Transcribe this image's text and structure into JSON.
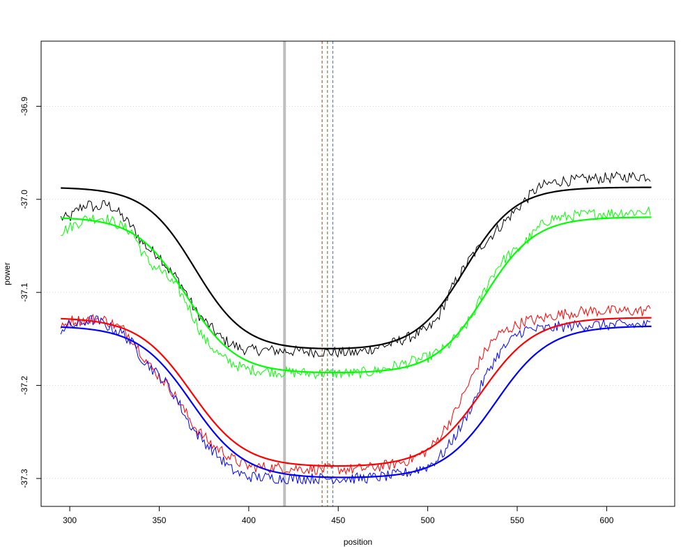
{
  "chart_data": {
    "type": "line",
    "title": "",
    "xlabel": "position",
    "ylabel": "power",
    "xlim": [
      284,
      638
    ],
    "ylim": [
      -37.33,
      -36.83
    ],
    "x_ticks": [
      300,
      350,
      400,
      450,
      500,
      550,
      600
    ],
    "y_ticks": [
      -37.3,
      -37.2,
      -37.1,
      -37.0,
      -36.9
    ],
    "y_tick_labels": [
      "-37.3",
      "-37.2",
      "-37.1",
      "-37.0",
      "-36.9"
    ],
    "grid": "horizontal dotted",
    "noisy_x_range": [
      295,
      625
    ],
    "series": [
      {
        "color": "#000000",
        "kind": "fit",
        "plateau": -36.987,
        "dip_min": -37.162,
        "fall_center": 370,
        "rise_center": 521,
        "width": 14,
        "noise": [
          [
            295,
            -37.02
          ],
          [
            300,
            -37.02
          ],
          [
            305,
            -37.01
          ],
          [
            310,
            -37.005
          ],
          [
            315,
            -37.01
          ],
          [
            320,
            -37.005
          ],
          [
            325,
            -37.01
          ],
          [
            330,
            -37.02
          ],
          [
            335,
            -37.03
          ],
          [
            340,
            -37.045
          ],
          [
            345,
            -37.055
          ],
          [
            350,
            -37.06
          ],
          [
            355,
            -37.075
          ],
          [
            360,
            -37.085
          ],
          [
            365,
            -37.1
          ],
          [
            370,
            -37.12
          ],
          [
            375,
            -37.13
          ],
          [
            380,
            -37.14
          ],
          [
            385,
            -37.15
          ],
          [
            390,
            -37.155
          ],
          [
            395,
            -37.16
          ],
          [
            400,
            -37.162
          ],
          [
            410,
            -37.162
          ],
          [
            420,
            -37.163
          ],
          [
            440,
            -37.164
          ],
          [
            460,
            -37.165
          ],
          [
            470,
            -37.16
          ],
          [
            480,
            -37.155
          ],
          [
            490,
            -37.148
          ],
          [
            500,
            -37.14
          ],
          [
            505,
            -37.13
          ],
          [
            510,
            -37.11
          ],
          [
            515,
            -37.09
          ],
          [
            520,
            -37.075
          ],
          [
            525,
            -37.06
          ],
          [
            530,
            -37.05
          ],
          [
            535,
            -37.04
          ],
          [
            540,
            -37.03
          ],
          [
            545,
            -37.02
          ],
          [
            550,
            -37.01
          ],
          [
            555,
            -37.0
          ],
          [
            560,
            -36.99
          ],
          [
            565,
            -36.985
          ],
          [
            570,
            -36.982
          ],
          [
            575,
            -36.98
          ],
          [
            580,
            -36.98
          ],
          [
            590,
            -36.978
          ],
          [
            600,
            -36.977
          ],
          [
            610,
            -36.976
          ],
          [
            620,
            -36.975
          ],
          [
            625,
            -36.976
          ]
        ]
      },
      {
        "color": "#00ff00",
        "kind": "fit",
        "plateau": -37.019,
        "dip_min": -37.187,
        "fall_center": 365,
        "rise_center": 532,
        "width": 14,
        "noise": [
          [
            295,
            -37.035
          ],
          [
            300,
            -37.03
          ],
          [
            305,
            -37.025
          ],
          [
            310,
            -37.02
          ],
          [
            315,
            -37.02
          ],
          [
            320,
            -37.02
          ],
          [
            325,
            -37.025
          ],
          [
            330,
            -37.03
          ],
          [
            335,
            -37.035
          ],
          [
            340,
            -37.055
          ],
          [
            345,
            -37.07
          ],
          [
            350,
            -37.075
          ],
          [
            355,
            -37.085
          ],
          [
            360,
            -37.095
          ],
          [
            365,
            -37.11
          ],
          [
            370,
            -37.13
          ],
          [
            375,
            -37.15
          ],
          [
            380,
            -37.16
          ],
          [
            385,
            -37.17
          ],
          [
            390,
            -37.175
          ],
          [
            395,
            -37.18
          ],
          [
            400,
            -37.183
          ],
          [
            420,
            -37.186
          ],
          [
            440,
            -37.187
          ],
          [
            460,
            -37.187
          ],
          [
            470,
            -37.185
          ],
          [
            480,
            -37.18
          ],
          [
            490,
            -37.175
          ],
          [
            500,
            -37.17
          ],
          [
            505,
            -37.165
          ],
          [
            510,
            -37.16
          ],
          [
            515,
            -37.15
          ],
          [
            520,
            -37.14
          ],
          [
            525,
            -37.125
          ],
          [
            530,
            -37.105
          ],
          [
            535,
            -37.085
          ],
          [
            540,
            -37.07
          ],
          [
            545,
            -37.06
          ],
          [
            550,
            -37.055
          ],
          [
            555,
            -37.045
          ],
          [
            560,
            -37.035
          ],
          [
            565,
            -37.025
          ],
          [
            570,
            -37.02
          ],
          [
            575,
            -37.02
          ],
          [
            580,
            -37.018
          ],
          [
            590,
            -37.016
          ],
          [
            600,
            -37.015
          ],
          [
            610,
            -37.014
          ],
          [
            620,
            -37.013
          ],
          [
            625,
            -37.013
          ]
        ]
      },
      {
        "color": "#ff0000",
        "kind": "fit",
        "plateau": -37.127,
        "dip_min": -37.288,
        "fall_center": 368,
        "rise_center": 530,
        "width": 15,
        "noise": [
          [
            295,
            -37.14
          ],
          [
            300,
            -37.13
          ],
          [
            305,
            -37.13
          ],
          [
            310,
            -37.13
          ],
          [
            315,
            -37.128
          ],
          [
            320,
            -37.13
          ],
          [
            325,
            -37.135
          ],
          [
            330,
            -37.14
          ],
          [
            335,
            -37.15
          ],
          [
            340,
            -37.165
          ],
          [
            345,
            -37.18
          ],
          [
            350,
            -37.19
          ],
          [
            355,
            -37.2
          ],
          [
            360,
            -37.215
          ],
          [
            365,
            -37.23
          ],
          [
            370,
            -37.245
          ],
          [
            375,
            -37.255
          ],
          [
            380,
            -37.265
          ],
          [
            385,
            -37.27
          ],
          [
            390,
            -37.278
          ],
          [
            395,
            -37.283
          ],
          [
            400,
            -37.287
          ],
          [
            420,
            -37.289
          ],
          [
            440,
            -37.29
          ],
          [
            460,
            -37.29
          ],
          [
            470,
            -37.288
          ],
          [
            480,
            -37.285
          ],
          [
            490,
            -37.28
          ],
          [
            500,
            -37.27
          ],
          [
            505,
            -37.26
          ],
          [
            510,
            -37.245
          ],
          [
            515,
            -37.23
          ],
          [
            520,
            -37.21
          ],
          [
            525,
            -37.19
          ],
          [
            530,
            -37.17
          ],
          [
            535,
            -37.155
          ],
          [
            540,
            -37.145
          ],
          [
            545,
            -37.14
          ],
          [
            550,
            -37.135
          ],
          [
            555,
            -37.13
          ],
          [
            560,
            -37.13
          ],
          [
            570,
            -37.125
          ],
          [
            580,
            -37.122
          ],
          [
            590,
            -37.12
          ],
          [
            600,
            -37.12
          ],
          [
            610,
            -37.12
          ],
          [
            620,
            -37.12
          ],
          [
            625,
            -37.118
          ]
        ]
      },
      {
        "color": "#0000ff",
        "kind": "fit",
        "plateau": -37.136,
        "dip_min": -37.3,
        "fall_center": 368,
        "rise_center": 538,
        "width": 15,
        "noise": [
          [
            295,
            -37.14
          ],
          [
            300,
            -37.135
          ],
          [
            305,
            -37.135
          ],
          [
            310,
            -37.13
          ],
          [
            315,
            -37.13
          ],
          [
            320,
            -37.135
          ],
          [
            325,
            -37.14
          ],
          [
            330,
            -37.145
          ],
          [
            335,
            -37.155
          ],
          [
            340,
            -37.17
          ],
          [
            345,
            -37.18
          ],
          [
            350,
            -37.19
          ],
          [
            355,
            -37.2
          ],
          [
            360,
            -37.215
          ],
          [
            365,
            -37.235
          ],
          [
            370,
            -37.25
          ],
          [
            375,
            -37.26
          ],
          [
            380,
            -37.27
          ],
          [
            385,
            -37.28
          ],
          [
            390,
            -37.29
          ],
          [
            395,
            -37.295
          ],
          [
            400,
            -37.298
          ],
          [
            420,
            -37.3
          ],
          [
            440,
            -37.3
          ],
          [
            460,
            -37.3
          ],
          [
            470,
            -37.299
          ],
          [
            480,
            -37.297
          ],
          [
            490,
            -37.293
          ],
          [
            500,
            -37.287
          ],
          [
            505,
            -37.28
          ],
          [
            510,
            -37.27
          ],
          [
            515,
            -37.255
          ],
          [
            520,
            -37.24
          ],
          [
            525,
            -37.22
          ],
          [
            530,
            -37.2
          ],
          [
            535,
            -37.18
          ],
          [
            540,
            -37.165
          ],
          [
            545,
            -37.155
          ],
          [
            550,
            -37.145
          ],
          [
            555,
            -37.14
          ],
          [
            560,
            -37.14
          ],
          [
            570,
            -37.138
          ],
          [
            580,
            -37.136
          ],
          [
            590,
            -37.135
          ],
          [
            600,
            -37.135
          ],
          [
            610,
            -37.135
          ],
          [
            620,
            -37.135
          ],
          [
            625,
            -37.135
          ]
        ]
      }
    ],
    "vertical_lines": [
      {
        "x": 420,
        "color": "#bfbfbf",
        "style": "solid-thick"
      },
      {
        "x": 441,
        "color": "#8b4513",
        "style": "dashed"
      },
      {
        "x": 444,
        "color": "#556b2f",
        "style": "dashed"
      },
      {
        "x": 447,
        "color": "#4169e1",
        "style": "dashed"
      }
    ]
  }
}
